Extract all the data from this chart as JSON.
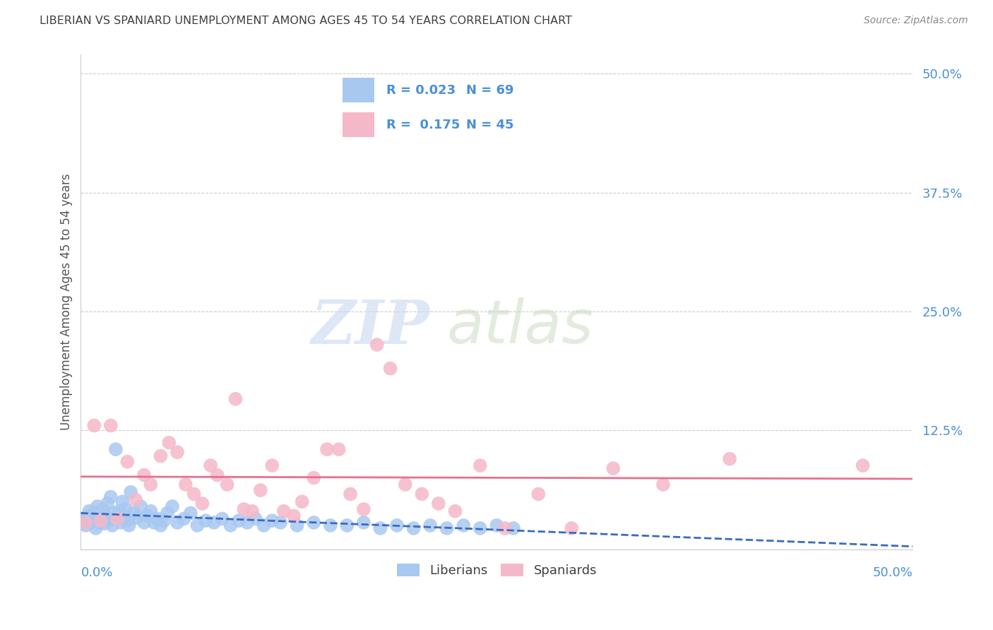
{
  "title": "LIBERIAN VS SPANIARD UNEMPLOYMENT AMONG AGES 45 TO 54 YEARS CORRELATION CHART",
  "source": "Source: ZipAtlas.com",
  "ylabel": "Unemployment Among Ages 45 to 54 years",
  "xlim": [
    0.0,
    0.5
  ],
  "ylim": [
    0.0,
    0.52
  ],
  "yticks": [
    0.0,
    0.125,
    0.25,
    0.375,
    0.5
  ],
  "ytick_labels": [
    "",
    "12.5%",
    "25.0%",
    "37.5%",
    "50.0%"
  ],
  "watermark_zip": "ZIP",
  "watermark_atlas": "atlas",
  "liberian_color": "#a8c8f0",
  "spaniard_color": "#f5b8c8",
  "liberian_line_color": "#3a6bbf",
  "spaniard_line_color": "#e87090",
  "legend_R_liberian": "0.023",
  "legend_N_liberian": "69",
  "legend_R_spaniard": "0.175",
  "legend_N_spaniard": "45",
  "liberian_x": [
    0.002,
    0.003,
    0.004,
    0.005,
    0.006,
    0.007,
    0.008,
    0.009,
    0.01,
    0.011,
    0.012,
    0.013,
    0.014,
    0.015,
    0.016,
    0.017,
    0.018,
    0.019,
    0.02,
    0.021,
    0.022,
    0.023,
    0.024,
    0.025,
    0.026,
    0.027,
    0.028,
    0.029,
    0.03,
    0.032,
    0.034,
    0.036,
    0.038,
    0.04,
    0.042,
    0.044,
    0.046,
    0.048,
    0.05,
    0.052,
    0.055,
    0.058,
    0.062,
    0.066,
    0.07,
    0.075,
    0.08,
    0.085,
    0.09,
    0.095,
    0.1,
    0.105,
    0.11,
    0.115,
    0.12,
    0.13,
    0.14,
    0.15,
    0.16,
    0.17,
    0.18,
    0.19,
    0.2,
    0.21,
    0.22,
    0.23,
    0.24,
    0.25,
    0.26
  ],
  "liberian_y": [
    0.03,
    0.025,
    0.035,
    0.04,
    0.028,
    0.032,
    0.038,
    0.022,
    0.045,
    0.028,
    0.033,
    0.042,
    0.027,
    0.035,
    0.048,
    0.03,
    0.055,
    0.025,
    0.038,
    0.105,
    0.032,
    0.04,
    0.028,
    0.05,
    0.035,
    0.042,
    0.03,
    0.025,
    0.06,
    0.038,
    0.033,
    0.045,
    0.028,
    0.035,
    0.04,
    0.028,
    0.032,
    0.025,
    0.03,
    0.038,
    0.045,
    0.028,
    0.032,
    0.038,
    0.025,
    0.03,
    0.028,
    0.032,
    0.025,
    0.03,
    0.028,
    0.032,
    0.025,
    0.03,
    0.028,
    0.025,
    0.028,
    0.025,
    0.025,
    0.028,
    0.022,
    0.025,
    0.022,
    0.025,
    0.022,
    0.025,
    0.022,
    0.025,
    0.022
  ],
  "spaniard_x": [
    0.003,
    0.008,
    0.012,
    0.018,
    0.022,
    0.028,
    0.033,
    0.038,
    0.042,
    0.048,
    0.053,
    0.058,
    0.063,
    0.068,
    0.073,
    0.078,
    0.082,
    0.088,
    0.093,
    0.098,
    0.103,
    0.108,
    0.115,
    0.122,
    0.128,
    0.133,
    0.14,
    0.148,
    0.155,
    0.162,
    0.17,
    0.178,
    0.186,
    0.195,
    0.205,
    0.215,
    0.225,
    0.24,
    0.255,
    0.275,
    0.295,
    0.32,
    0.35,
    0.39,
    0.47
  ],
  "spaniard_y": [
    0.028,
    0.13,
    0.03,
    0.13,
    0.032,
    0.092,
    0.052,
    0.078,
    0.068,
    0.098,
    0.112,
    0.102,
    0.068,
    0.058,
    0.048,
    0.088,
    0.078,
    0.068,
    0.158,
    0.042,
    0.04,
    0.062,
    0.088,
    0.04,
    0.035,
    0.05,
    0.075,
    0.105,
    0.105,
    0.058,
    0.042,
    0.215,
    0.19,
    0.068,
    0.058,
    0.048,
    0.04,
    0.088,
    0.022,
    0.058,
    0.022,
    0.085,
    0.068,
    0.095,
    0.088
  ],
  "background_color": "#ffffff",
  "grid_color": "#cccccc",
  "title_color": "#404040",
  "source_color": "#888888",
  "tick_label_color": "#4a90d9",
  "ylabel_color": "#555555"
}
